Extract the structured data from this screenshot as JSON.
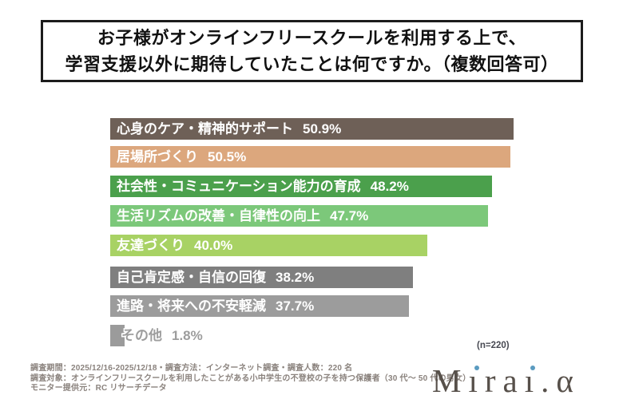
{
  "title": {
    "line1": "お子様がオンラインフリースクールを利用する上で、",
    "line2": "学習支援以外に期待していたことは何ですか。（複数回答可）"
  },
  "chart_data": {
    "type": "bar",
    "orientation": "horizontal",
    "unit": "%",
    "title": "お子様がオンラインフリースクールを利用する上で、学習支援以外に期待していたことは何ですか。（複数回答可）",
    "xlim": [
      0,
      60
    ],
    "grid": false,
    "legend": "none",
    "sample_note": "(n=220)",
    "categories": [
      "心身のケア・精神的サポート",
      "居場所づくり",
      "社会性・コミュニケーション能力の育成",
      "生活リズムの改善・自律性の向上",
      "友達づくり",
      "自己肯定感・自信の回復",
      "進路・将来への不安軽減",
      "その他"
    ],
    "values": [
      50.9,
      50.5,
      48.2,
      47.7,
      40.0,
      38.2,
      37.7,
      1.8
    ],
    "items": [
      {
        "label": "心身のケア・精神的サポート",
        "value": 50.9,
        "display": "50.9%",
        "color": "#6e6057"
      },
      {
        "label": "居場所づくり",
        "value": 50.5,
        "display": "50.5%",
        "color": "#dca77d"
      },
      {
        "label": "社会性・コミュニケーション能力の育成",
        "value": 48.2,
        "display": "48.2%",
        "color": "#4ba04c"
      },
      {
        "label": "生活リズムの改善・自律性の向上",
        "value": 47.7,
        "display": "47.7%",
        "color": "#7cc87a"
      },
      {
        "label": "友達づくり",
        "value": 40.0,
        "display": "40.0%",
        "color": "#a8d264"
      },
      {
        "label": "自己肯定感・自信の回復",
        "value": 38.2,
        "display": "38.2%",
        "color": "#7f7f7f"
      },
      {
        "label": "進路・将来への不安軽減",
        "value": 37.7,
        "display": "37.7%",
        "color": "#9c9c9c"
      },
      {
        "label": "その他",
        "value": 1.8,
        "display": "1.8%",
        "color": "#9b9b9b"
      }
    ]
  },
  "footnote": {
    "line1": "調査期間：2025/12/16-2025/12/18・調査方法：インターネット調査・調査人数：220 名",
    "line2": "調査対象：オンラインフリースクールを利用したことがある小中学生の不登校の子を持つ保護者（30 代〜 50 代の男女）",
    "line3": "モニター提供元：RC リサーチデータ"
  },
  "logo": {
    "text": "Mirai.α",
    "letter_color": "#57504a",
    "dot_color": "#5b9bc0"
  }
}
